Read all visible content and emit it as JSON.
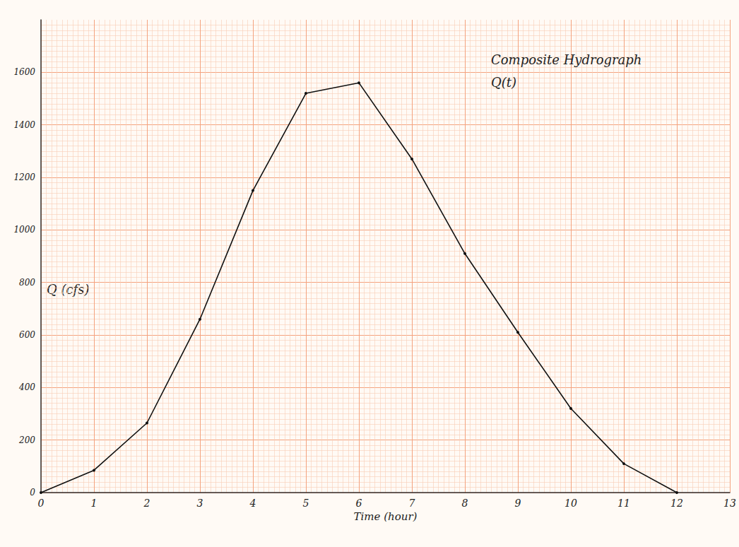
{
  "chart_data": {
    "type": "line",
    "title": "Composite Hydrograph",
    "subtitle": "Q(t)",
    "x_label": "Time (hour)",
    "y_label": "Q (cfs)",
    "x": [
      0,
      1,
      2,
      3,
      4,
      5,
      6,
      7,
      8,
      9,
      10,
      11,
      12
    ],
    "values": [
      0,
      85,
      265,
      660,
      1150,
      1520,
      1560,
      1270,
      910,
      610,
      320,
      110,
      0
    ],
    "color": "#111111",
    "marker": "circle",
    "line_style": "solid",
    "xlim": [
      0,
      13
    ],
    "xticks": [
      0,
      1,
      2,
      3,
      4,
      5,
      6,
      7,
      8,
      9,
      10,
      11,
      12,
      13
    ],
    "ylim": [
      0,
      1800
    ],
    "yticks": [
      0,
      200,
      400,
      600,
      800,
      1000,
      1200,
      1400,
      1600
    ],
    "grid": true
  }
}
